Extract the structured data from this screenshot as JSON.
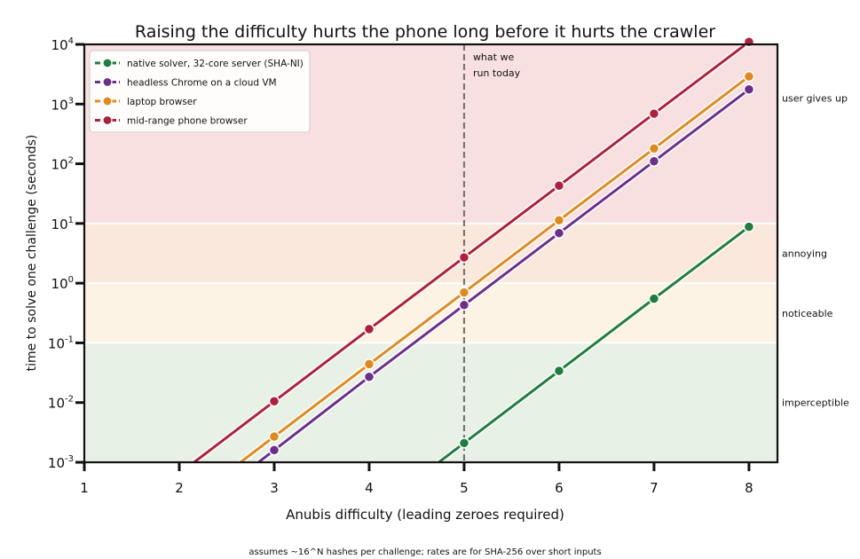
{
  "chart_data": {
    "type": "line",
    "title": "Raising the difficulty hurts the phone long before it hurts the crawler",
    "xlabel": "Anubis difficulty (leading zeroes required)",
    "ylabel": "time to solve one challenge (seconds)",
    "footnote": "assumes ~16^N hashes per challenge; rates are for SHA-256 over short inputs",
    "x_scale": "linear",
    "y_scale": "log",
    "xlim": [
      1,
      8.3
    ],
    "ylim": [
      0.001,
      10000
    ],
    "x_ticks": [
      "1",
      "2",
      "3",
      "4",
      "5",
      "6",
      "7",
      "8"
    ],
    "y_ticks": [
      {
        "base": "10",
        "exp": "-3"
      },
      {
        "base": "10",
        "exp": "-2"
      },
      {
        "base": "10",
        "exp": "-1"
      },
      {
        "base": "10",
        "exp": "0"
      },
      {
        "base": "10",
        "exp": "1"
      },
      {
        "base": "10",
        "exp": "2"
      },
      {
        "base": "10",
        "exp": "3"
      },
      {
        "base": "10",
        "exp": "4"
      }
    ],
    "grid": false,
    "legend_position": "top-left",
    "bands": [
      {
        "label": "imperceptible",
        "from": 0.001,
        "to": 0.1,
        "color": "#e8f1e6"
      },
      {
        "label": "noticeable",
        "from": 0.1,
        "to": 1,
        "color": "#fdf3e4"
      },
      {
        "label": "annoying",
        "from": 1,
        "to": 10,
        "color": "#fbe8dc"
      },
      {
        "label": "user gives up",
        "from": 10,
        "to": 10000,
        "color": "#f9e0e0"
      }
    ],
    "reference_line": {
      "x": 5,
      "label_lines": [
        "what we",
        "run today"
      ],
      "color": "#777777"
    },
    "x": [
      3,
      4,
      5,
      6,
      7,
      8
    ],
    "series": [
      {
        "name": "native solver, 32-core server (SHA-NI)",
        "color": "#1e7e3e",
        "values": [
          null,
          null,
          0.0021,
          0.034,
          0.55,
          8.8
        ]
      },
      {
        "name": "headless Chrome on a cloud VM",
        "color": "#6b2f8c",
        "values": [
          0.0016,
          0.027,
          0.43,
          6.9,
          110,
          1760
        ]
      },
      {
        "name": "laptop browser",
        "color": "#e08a1e",
        "values": [
          0.0027,
          0.044,
          0.7,
          11.3,
          180,
          2900
        ]
      },
      {
        "name": "mid-range phone browser",
        "color": "#b0203a",
        "values": [
          0.0105,
          0.17,
          2.7,
          43,
          690,
          11000
        ]
      }
    ]
  }
}
